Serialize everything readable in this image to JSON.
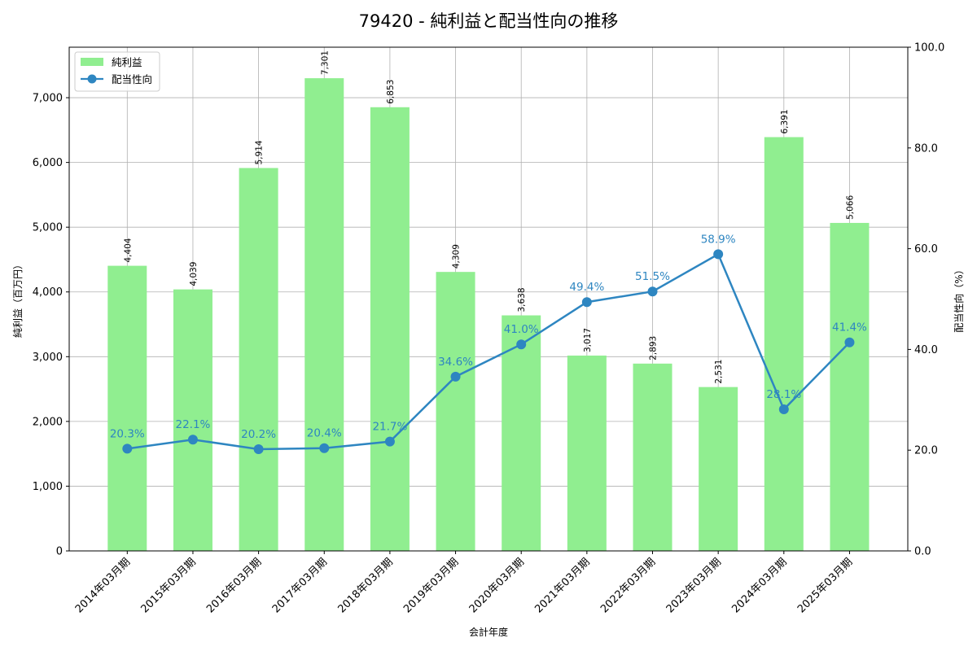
{
  "chart": {
    "title": "79420 - 純利益と配当性向の推移",
    "xlabel": "会計年度",
    "ylabel_left": "純利益（百万円）",
    "ylabel_right": "配当性向（%）",
    "legend": [
      {
        "label": "純利益",
        "type": "bar",
        "color": "#90ee90"
      },
      {
        "label": "配当性向",
        "type": "line-marker",
        "color": "#2e86c1"
      }
    ],
    "left_ticks": [
      "0",
      "1,000",
      "2,000",
      "3,000",
      "4,000",
      "5,000",
      "6,000",
      "7,000"
    ],
    "right_ticks": [
      "0.0",
      "20.0",
      "40.0",
      "60.0",
      "80.0",
      "100.0"
    ]
  },
  "chart_data": {
    "type": "bar+line",
    "title": "79420 - 純利益と配当性向の推移",
    "xlabel": "会計年度",
    "ylabel": "純利益（百万円）",
    "y2label": "配当性向（%）",
    "categories": [
      "2014年03月期",
      "2015年03月期",
      "2016年03月期",
      "2017年03月期",
      "2018年03月期",
      "2019年03月期",
      "2020年03月期",
      "2021年03月期",
      "2022年03月期",
      "2023年03月期",
      "2024年03月期",
      "2025年03月期"
    ],
    "series": [
      {
        "name": "純利益",
        "type": "bar",
        "axis": "left",
        "color": "#90ee90",
        "values": [
          4404,
          4039,
          5914,
          7301,
          6853,
          4309,
          3638,
          3017,
          2893,
          2531,
          6391,
          5066
        ],
        "labels": [
          "4,404",
          "4,039",
          "5,914",
          "7,301",
          "6,853",
          "4,309",
          "3,638",
          "3,017",
          "2,893",
          "2,531",
          "6,391",
          "5,066"
        ]
      },
      {
        "name": "配当性向",
        "type": "line",
        "axis": "right",
        "color": "#2e86c1",
        "values": [
          20.3,
          22.1,
          20.2,
          20.4,
          21.7,
          34.6,
          41.0,
          49.4,
          51.5,
          58.9,
          28.1,
          41.4
        ],
        "labels": [
          "20.3%",
          "22.1%",
          "20.2%",
          "20.4%",
          "21.7%",
          "34.6%",
          "41.0%",
          "49.4%",
          "51.5%",
          "58.9%",
          "28.1%",
          "41.4%"
        ]
      }
    ],
    "ylim": [
      0,
      7780
    ],
    "y2lim": [
      0,
      100
    ],
    "grid": true,
    "legend_position": "upper left"
  }
}
